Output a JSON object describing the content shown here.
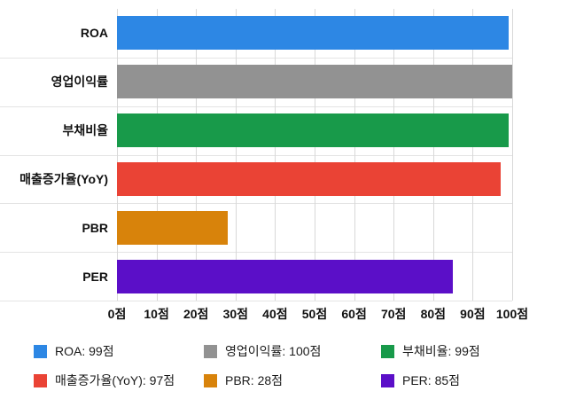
{
  "chart_data": {
    "type": "bar",
    "orientation": "horizontal",
    "title": "",
    "categories": [
      "ROA",
      "영업이익률",
      "부채비율",
      "매출증가율(YoY)",
      "PBR",
      "PER"
    ],
    "values": [
      99,
      100,
      99,
      97,
      28,
      85
    ],
    "colors": [
      "#2D87E4",
      "#929292",
      "#189A4A",
      "#EA4335",
      "#D8830B",
      "#5B0FC8"
    ],
    "xlim": [
      0,
      100
    ],
    "tick_step": 10,
    "xticks": [
      "0점",
      "10점",
      "20점",
      "30점",
      "40점",
      "50점",
      "60점",
      "70점",
      "80점",
      "90점",
      "100점"
    ],
    "grid": "vertical",
    "legend_position": "bottom",
    "legend": [
      "ROA: 99점",
      "영업이익률: 100점",
      "부채비율: 99점",
      "매출증가율(YoY): 97점",
      "PBR: 28점",
      "PER: 85점"
    ],
    "background": "#ffffff",
    "gridline_color": "#d8d8d8"
  }
}
